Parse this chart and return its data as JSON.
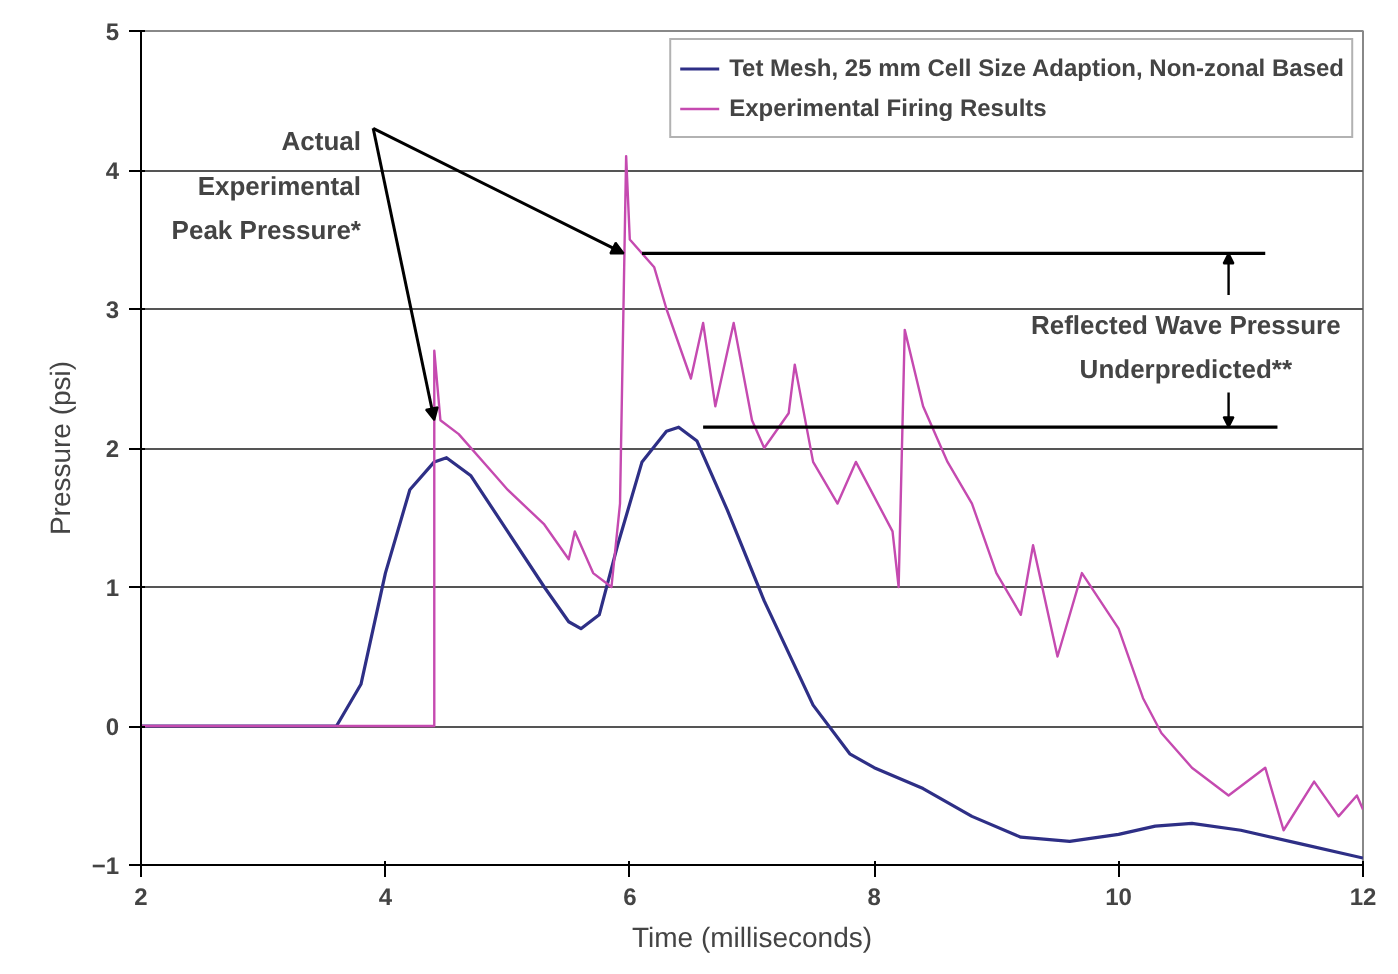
{
  "chart_data": {
    "type": "line",
    "xlabel": "Time (milliseconds)",
    "ylabel": "Pressure (psi)",
    "xlim": [
      2,
      12
    ],
    "xticks": [
      2,
      4,
      6,
      8,
      10,
      12
    ],
    "ylim": [
      -1,
      5
    ],
    "yticks": [
      -1,
      0,
      1,
      2,
      3,
      4,
      5
    ],
    "grid": "y",
    "legend": "top right",
    "series": [
      {
        "name": "Tet Mesh, 25 mm Cell Size Adaption, Non-zonal Based",
        "color": "#2e2f86",
        "x": [
          2,
          3,
          3.6,
          3.8,
          4.0,
          4.2,
          4.4,
          4.5,
          4.7,
          5.0,
          5.3,
          5.5,
          5.6,
          5.75,
          5.9,
          6.1,
          6.3,
          6.4,
          6.55,
          6.8,
          7.1,
          7.5,
          7.8,
          8.0,
          8.4,
          8.8,
          9.2,
          9.6,
          10.0,
          10.3,
          10.6,
          11.0,
          11.5,
          12
        ],
        "values": [
          0,
          0,
          0,
          0.3,
          1.1,
          1.7,
          1.9,
          1.93,
          1.8,
          1.4,
          1.0,
          0.75,
          0.7,
          0.8,
          1.3,
          1.9,
          2.12,
          2.15,
          2.05,
          1.55,
          0.9,
          0.15,
          -0.2,
          -0.3,
          -0.45,
          -0.65,
          -0.8,
          -0.83,
          -0.78,
          -0.72,
          -0.7,
          -0.75,
          -0.85,
          -0.95
        ]
      },
      {
        "name": "Experimental Firing Results",
        "color": "#c54ab0",
        "x": [
          2,
          3,
          4,
          4.4,
          4.4,
          4.45,
          4.6,
          4.9,
          5.0,
          5.3,
          5.5,
          5.55,
          5.7,
          5.85,
          5.92,
          5.97,
          6.0,
          6.2,
          6.3,
          6.5,
          6.6,
          6.7,
          6.85,
          7.0,
          7.1,
          7.3,
          7.35,
          7.5,
          7.7,
          7.85,
          8.15,
          8.2,
          8.25,
          8.4,
          8.6,
          8.8,
          9.0,
          9.2,
          9.3,
          9.5,
          9.7,
          10.0,
          10.2,
          10.35,
          10.6,
          10.9,
          11.2,
          11.35,
          11.6,
          11.8,
          11.95,
          12
        ],
        "values": [
          0,
          0,
          0,
          0,
          2.7,
          2.2,
          2.1,
          1.8,
          1.7,
          1.45,
          1.2,
          1.4,
          1.1,
          1.0,
          1.6,
          4.1,
          3.5,
          3.3,
          3.0,
          2.5,
          2.9,
          2.3,
          2.9,
          2.2,
          2.0,
          2.25,
          2.6,
          1.9,
          1.6,
          1.9,
          1.4,
          1.0,
          2.85,
          2.3,
          1.9,
          1.6,
          1.1,
          0.8,
          1.3,
          0.5,
          1.1,
          0.7,
          0.2,
          -0.05,
          -0.3,
          -0.5,
          -0.3,
          -0.75,
          -0.4,
          -0.65,
          -0.5,
          -0.6
        ]
      },
      {
        "type": "line",
        "color": "#000000",
        "x": [
          6.1,
          11.2
        ],
        "values": [
          3.4,
          3.4
        ]
      },
      {
        "type": "line",
        "color": "#000000",
        "x": [
          6.6,
          11.3
        ],
        "values": [
          2.15,
          2.15
        ]
      }
    ],
    "annotations": [
      {
        "text": "Actual Experimental Peak Pressure*",
        "x": 4.4,
        "y": 2.2
      },
      {
        "text": "Reflected Wave Pressure Underpredicted**",
        "x": 10.9,
        "y": 3.4
      }
    ]
  }
}
